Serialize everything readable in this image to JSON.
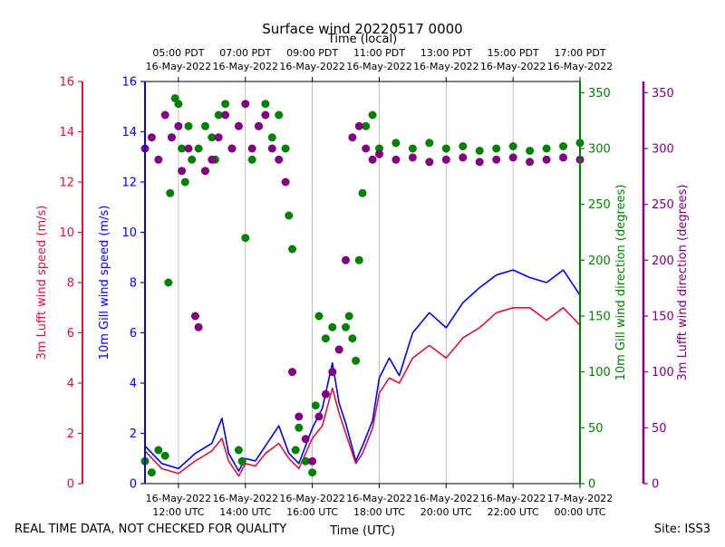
{
  "chart_data": {
    "type": "scatter",
    "title": "Surface wind 20220517 0000",
    "top_axis_title": "Time (local)",
    "xlabel": "Time (UTC)",
    "footer_left": "REAL TIME DATA, NOT CHECKED FOR QUALITY",
    "footer_right": "Site: ISS3",
    "x_range_hours": [
      11,
      24
    ],
    "bottom_ticks": [
      {
        "hour": 12,
        "line1": "16-May-2022",
        "line2": "12:00 UTC"
      },
      {
        "hour": 14,
        "line1": "16-May-2022",
        "line2": "14:00 UTC"
      },
      {
        "hour": 16,
        "line1": "16-May-2022",
        "line2": "16:00 UTC"
      },
      {
        "hour": 18,
        "line1": "16-May-2022",
        "line2": "18:00 UTC"
      },
      {
        "hour": 20,
        "line1": "16-May-2022",
        "line2": "20:00 UTC"
      },
      {
        "hour": 22,
        "line1": "16-May-2022",
        "line2": "22:00 UTC"
      },
      {
        "hour": 24,
        "line1": "17-May-2022",
        "line2": "00:00 UTC"
      }
    ],
    "top_ticks": [
      {
        "hour": 12,
        "line1": "05:00 PDT",
        "line2": "16-May-2022"
      },
      {
        "hour": 14,
        "line1": "07:00 PDT",
        "line2": "16-May-2022"
      },
      {
        "hour": 16,
        "line1": "09:00 PDT",
        "line2": "16-May-2022"
      },
      {
        "hour": 18,
        "line1": "11:00 PDT",
        "line2": "16-May-2022"
      },
      {
        "hour": 20,
        "line1": "13:00 PDT",
        "line2": "16-May-2022"
      },
      {
        "hour": 22,
        "line1": "15:00 PDT",
        "line2": "16-May-2022"
      },
      {
        "hour": 24,
        "line1": "17:00 PDT",
        "line2": "16-May-2022"
      }
    ],
    "axes": {
      "lufft_speed": {
        "label": "3m Lufft wind speed (m/s)",
        "color": "#dc143c",
        "ylim": [
          0,
          16
        ],
        "ticks": [
          0,
          2,
          4,
          6,
          8,
          10,
          12,
          14,
          16
        ]
      },
      "gill_speed": {
        "label": "10m Gill wind speed (m/s)",
        "color": "#0000ff",
        "ylim": [
          0,
          16
        ],
        "ticks": [
          0,
          2,
          4,
          6,
          8,
          10,
          12,
          14,
          16
        ]
      },
      "gill_dir": {
        "label": "10m Gill wind direction (degrees)",
        "color": "#008000",
        "ylim": [
          0,
          360
        ],
        "ticks": [
          0,
          50,
          100,
          150,
          200,
          250,
          300,
          350
        ]
      },
      "lufft_dir": {
        "label": "3m Lufft wind direction (degrees)",
        "color": "#800080",
        "ylim": [
          0,
          360
        ],
        "ticks": [
          0,
          50,
          100,
          150,
          200,
          250,
          300,
          350
        ]
      }
    },
    "series": [
      {
        "name": "10m Gill wind speed",
        "style": "line",
        "axis": "gill_speed",
        "color": "#0000ff",
        "points": [
          [
            11.0,
            1.5
          ],
          [
            11.5,
            0.8
          ],
          [
            12.0,
            0.6
          ],
          [
            12.5,
            1.2
          ],
          [
            13.0,
            1.6
          ],
          [
            13.3,
            2.6
          ],
          [
            13.5,
            1.2
          ],
          [
            13.8,
            0.5
          ],
          [
            14.0,
            1.0
          ],
          [
            14.3,
            0.9
          ],
          [
            14.6,
            1.5
          ],
          [
            15.0,
            2.3
          ],
          [
            15.3,
            1.2
          ],
          [
            15.6,
            0.8
          ],
          [
            16.0,
            2.2
          ],
          [
            16.3,
            3.0
          ],
          [
            16.6,
            4.8
          ],
          [
            16.8,
            3.2
          ],
          [
            17.0,
            2.4
          ],
          [
            17.3,
            0.9
          ],
          [
            17.5,
            1.5
          ],
          [
            17.8,
            2.5
          ],
          [
            18.0,
            4.2
          ],
          [
            18.3,
            5.0
          ],
          [
            18.6,
            4.3
          ],
          [
            19.0,
            6.0
          ],
          [
            19.5,
            6.8
          ],
          [
            20.0,
            6.2
          ],
          [
            20.5,
            7.2
          ],
          [
            21.0,
            7.8
          ],
          [
            21.5,
            8.3
          ],
          [
            22.0,
            8.5
          ],
          [
            22.5,
            8.2
          ],
          [
            23.0,
            8.0
          ],
          [
            23.5,
            8.5
          ],
          [
            24.0,
            7.5
          ]
        ]
      },
      {
        "name": "3m Lufft wind speed",
        "style": "line",
        "axis": "lufft_speed",
        "color": "#dc143c",
        "points": [
          [
            11.0,
            1.3
          ],
          [
            11.5,
            0.6
          ],
          [
            12.0,
            0.4
          ],
          [
            12.5,
            0.9
          ],
          [
            13.0,
            1.3
          ],
          [
            13.3,
            1.8
          ],
          [
            13.5,
            0.9
          ],
          [
            13.8,
            0.3
          ],
          [
            14.0,
            0.8
          ],
          [
            14.3,
            0.7
          ],
          [
            14.6,
            1.2
          ],
          [
            15.0,
            1.6
          ],
          [
            15.3,
            1.0
          ],
          [
            15.6,
            0.6
          ],
          [
            16.0,
            1.8
          ],
          [
            16.3,
            2.3
          ],
          [
            16.6,
            3.8
          ],
          [
            16.8,
            2.8
          ],
          [
            17.0,
            2.0
          ],
          [
            17.3,
            0.8
          ],
          [
            17.5,
            1.2
          ],
          [
            17.8,
            2.2
          ],
          [
            18.0,
            3.6
          ],
          [
            18.3,
            4.2
          ],
          [
            18.6,
            4.0
          ],
          [
            19.0,
            5.0
          ],
          [
            19.5,
            5.5
          ],
          [
            20.0,
            5.0
          ],
          [
            20.5,
            5.8
          ],
          [
            21.0,
            6.2
          ],
          [
            21.5,
            6.8
          ],
          [
            22.0,
            7.0
          ],
          [
            22.5,
            7.0
          ],
          [
            23.0,
            6.5
          ],
          [
            23.5,
            7.0
          ],
          [
            24.0,
            6.3
          ]
        ]
      },
      {
        "name": "10m Gill wind direction",
        "style": "scatter",
        "axis": "gill_dir",
        "color": "#008000",
        "points": [
          [
            11.0,
            20
          ],
          [
            11.2,
            10
          ],
          [
            11.4,
            30
          ],
          [
            11.6,
            25
          ],
          [
            11.7,
            180
          ],
          [
            11.75,
            260
          ],
          [
            11.8,
            310
          ],
          [
            11.9,
            345
          ],
          [
            12.0,
            340
          ],
          [
            12.1,
            300
          ],
          [
            12.2,
            270
          ],
          [
            12.3,
            320
          ],
          [
            12.4,
            290
          ],
          [
            12.6,
            300
          ],
          [
            12.8,
            320
          ],
          [
            13.0,
            310
          ],
          [
            13.1,
            290
          ],
          [
            13.2,
            330
          ],
          [
            13.4,
            340
          ],
          [
            13.6,
            300
          ],
          [
            13.8,
            30
          ],
          [
            13.9,
            20
          ],
          [
            14.0,
            220
          ],
          [
            14.2,
            290
          ],
          [
            14.4,
            320
          ],
          [
            14.6,
            340
          ],
          [
            14.8,
            310
          ],
          [
            15.0,
            330
          ],
          [
            15.2,
            300
          ],
          [
            15.3,
            240
          ],
          [
            15.4,
            210
          ],
          [
            15.5,
            30
          ],
          [
            15.6,
            50
          ],
          [
            15.8,
            20
          ],
          [
            16.0,
            10
          ],
          [
            16.1,
            70
          ],
          [
            16.2,
            150
          ],
          [
            16.4,
            130
          ],
          [
            16.6,
            140
          ],
          [
            16.8,
            120
          ],
          [
            17.0,
            140
          ],
          [
            17.1,
            150
          ],
          [
            17.2,
            130
          ],
          [
            17.3,
            110
          ],
          [
            17.4,
            200
          ],
          [
            17.5,
            260
          ],
          [
            17.6,
            320
          ],
          [
            17.8,
            330
          ],
          [
            18.0,
            300
          ],
          [
            18.5,
            305
          ],
          [
            19.0,
            300
          ],
          [
            19.5,
            305
          ],
          [
            20.0,
            300
          ],
          [
            20.5,
            302
          ],
          [
            21.0,
            298
          ],
          [
            21.5,
            300
          ],
          [
            22.0,
            302
          ],
          [
            22.5,
            298
          ],
          [
            23.0,
            300
          ],
          [
            23.5,
            302
          ],
          [
            24.0,
            305
          ]
        ]
      },
      {
        "name": "3m Lufft wind direction",
        "style": "scatter",
        "axis": "lufft_dir",
        "color": "#800080",
        "points": [
          [
            11.0,
            300
          ],
          [
            11.2,
            310
          ],
          [
            11.4,
            290
          ],
          [
            11.6,
            330
          ],
          [
            11.8,
            310
          ],
          [
            12.0,
            320
          ],
          [
            12.1,
            280
          ],
          [
            12.3,
            300
          ],
          [
            12.5,
            150
          ],
          [
            12.6,
            140
          ],
          [
            12.8,
            280
          ],
          [
            13.0,
            290
          ],
          [
            13.2,
            310
          ],
          [
            13.4,
            330
          ],
          [
            13.6,
            300
          ],
          [
            13.8,
            320
          ],
          [
            14.0,
            340
          ],
          [
            14.2,
            300
          ],
          [
            14.4,
            320
          ],
          [
            14.6,
            330
          ],
          [
            14.8,
            300
          ],
          [
            15.0,
            290
          ],
          [
            15.2,
            270
          ],
          [
            15.4,
            100
          ],
          [
            15.6,
            60
          ],
          [
            15.8,
            40
          ],
          [
            16.0,
            20
          ],
          [
            16.2,
            60
          ],
          [
            16.4,
            80
          ],
          [
            16.6,
            100
          ],
          [
            16.8,
            120
          ],
          [
            17.0,
            200
          ],
          [
            17.2,
            310
          ],
          [
            17.4,
            320
          ],
          [
            17.6,
            300
          ],
          [
            17.8,
            290
          ],
          [
            18.0,
            295
          ],
          [
            18.5,
            290
          ],
          [
            19.0,
            292
          ],
          [
            19.5,
            288
          ],
          [
            20.0,
            290
          ],
          [
            20.5,
            292
          ],
          [
            21.0,
            288
          ],
          [
            21.5,
            290
          ],
          [
            22.0,
            292
          ],
          [
            22.5,
            288
          ],
          [
            23.0,
            290
          ],
          [
            23.5,
            292
          ],
          [
            24.0,
            290
          ]
        ]
      }
    ]
  }
}
